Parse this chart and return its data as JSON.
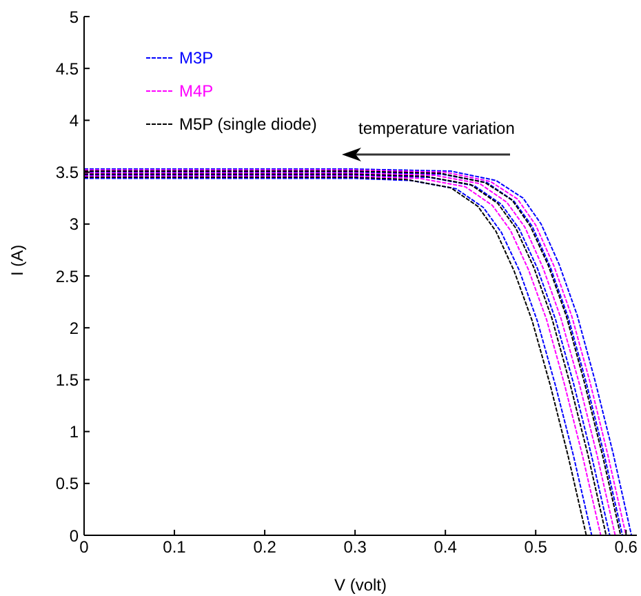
{
  "chart_data": {
    "type": "line",
    "xlabel": "V (volt)",
    "ylabel": "I (A)",
    "xlim": [
      0,
      0.612
    ],
    "ylim": [
      0,
      5
    ],
    "xticks": [
      0,
      0.1,
      0.2,
      0.3,
      0.4,
      0.5,
      0.6
    ],
    "yticks": [
      0,
      0.5,
      1,
      1.5,
      2,
      2.5,
      3,
      3.5,
      4,
      4.5,
      5
    ],
    "legend": "top left",
    "marker": "none",
    "line_style": "dashed",
    "annotations": [
      "temperature variation"
    ],
    "series": [
      {
        "name": "M3P",
        "color": "#0000ff",
        "x": [
          0,
          0.1,
          0.2,
          0.3,
          0.406,
          0.456,
          0.486,
          0.506,
          0.526,
          0.546,
          0.566,
          0.586,
          0.606
        ],
        "values": [
          3.53,
          3.53,
          3.53,
          3.53,
          3.51,
          3.42,
          3.25,
          3.0,
          2.61,
          2.12,
          1.48,
          0.78,
          0
        ]
      },
      {
        "color": "#0000ff",
        "x": [
          0,
          0.1,
          0.2,
          0.3,
          0.396,
          0.446,
          0.476,
          0.496,
          0.516,
          0.536,
          0.556,
          0.576,
          0.596
        ],
        "values": [
          3.5,
          3.5,
          3.5,
          3.5,
          3.48,
          3.4,
          3.22,
          2.98,
          2.59,
          2.1,
          1.47,
          0.77,
          0
        ]
      },
      {
        "color": "#0000ff",
        "x": [
          0,
          0.1,
          0.2,
          0.3,
          0.382,
          0.432,
          0.462,
          0.482,
          0.502,
          0.522,
          0.542,
          0.562,
          0.582
        ],
        "values": [
          3.47,
          3.47,
          3.47,
          3.47,
          3.45,
          3.37,
          3.19,
          2.95,
          2.57,
          2.08,
          1.46,
          0.76,
          0
        ]
      },
      {
        "color": "#0000ff",
        "x": [
          0,
          0.1,
          0.2,
          0.3,
          0.362,
          0.412,
          0.442,
          0.462,
          0.482,
          0.502,
          0.522,
          0.542,
          0.562
        ],
        "values": [
          3.44,
          3.44,
          3.44,
          3.44,
          3.42,
          3.34,
          3.16,
          2.92,
          2.55,
          2.06,
          1.44,
          0.76,
          0
        ]
      },
      {
        "name": "M4P",
        "color": "#ff00ff",
        "x": [
          0,
          0.1,
          0.2,
          0.3,
          0.4,
          0.45,
          0.48,
          0.5,
          0.52,
          0.54,
          0.56,
          0.58,
          0.6
        ],
        "values": [
          3.52,
          3.52,
          3.52,
          3.52,
          3.5,
          3.41,
          3.24,
          2.99,
          2.6,
          2.11,
          1.48,
          0.77,
          0
        ]
      },
      {
        "color": "#ff00ff",
        "x": [
          0,
          0.1,
          0.2,
          0.3,
          0.388,
          0.438,
          0.468,
          0.488,
          0.508,
          0.528,
          0.548,
          0.568,
          0.588
        ],
        "values": [
          3.49,
          3.49,
          3.49,
          3.49,
          3.47,
          3.39,
          3.21,
          2.97,
          2.58,
          2.09,
          1.47,
          0.77,
          0
        ]
      },
      {
        "color": "#ff00ff",
        "x": [
          0,
          0.1,
          0.2,
          0.3,
          0.372,
          0.422,
          0.452,
          0.472,
          0.492,
          0.512,
          0.532,
          0.552,
          0.572
        ],
        "values": [
          3.46,
          3.46,
          3.46,
          3.46,
          3.44,
          3.36,
          3.18,
          2.94,
          2.56,
          2.08,
          1.45,
          0.76,
          0
        ]
      },
      {
        "name": "M5P (single diode)",
        "color": "#000000",
        "x": [
          0,
          0.1,
          0.2,
          0.3,
          0.394,
          0.444,
          0.474,
          0.494,
          0.514,
          0.534,
          0.554,
          0.574,
          0.594
        ],
        "values": [
          3.51,
          3.51,
          3.51,
          3.51,
          3.49,
          3.4,
          3.23,
          2.98,
          2.6,
          2.11,
          1.47,
          0.77,
          0
        ]
      },
      {
        "color": "#000000",
        "x": [
          0,
          0.1,
          0.2,
          0.3,
          0.378,
          0.428,
          0.458,
          0.478,
          0.498,
          0.518,
          0.538,
          0.558,
          0.578
        ],
        "values": [
          3.48,
          3.48,
          3.48,
          3.48,
          3.46,
          3.38,
          3.2,
          2.96,
          2.58,
          2.09,
          1.46,
          0.77,
          0
        ]
      },
      {
        "color": "#000000",
        "x": [
          0,
          0.1,
          0.2,
          0.3,
          0.356,
          0.406,
          0.436,
          0.456,
          0.476,
          0.496,
          0.516,
          0.536,
          0.556
        ],
        "values": [
          3.45,
          3.45,
          3.45,
          3.45,
          3.43,
          3.35,
          3.17,
          2.93,
          2.55,
          2.07,
          1.45,
          0.76,
          0
        ]
      }
    ]
  }
}
